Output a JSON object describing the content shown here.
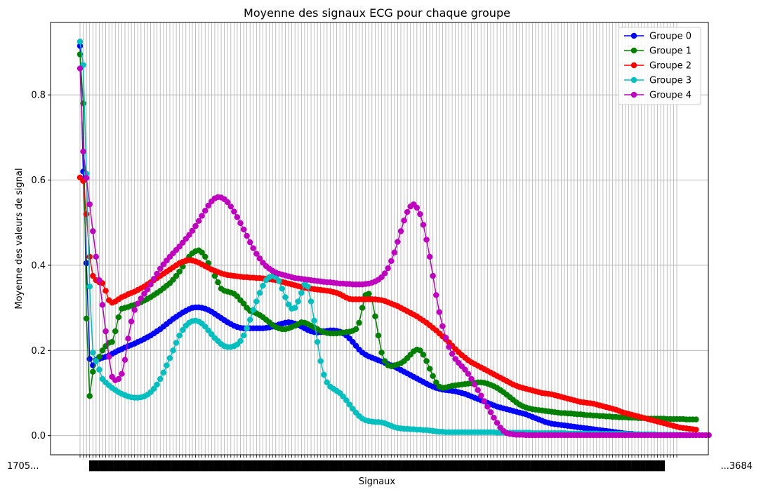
{
  "chart_data": {
    "type": "line",
    "title": "Moyenne des signaux ECG pour chaque groupe",
    "xlabel": "Signaux",
    "ylabel": "Moyenne des valeurs de signal",
    "ylim": [
      -0.045,
      0.97
    ],
    "yticks": [
      "0.0",
      "0.2",
      "0.4",
      "0.6",
      "0.8"
    ],
    "grid": true,
    "legend": "top-right",
    "n_points": 187,
    "x_first_tick": "1705...",
    "x_last_tick": "...3684",
    "series": [
      {
        "name": "Groupe 0",
        "color": "#0000ff",
        "values": [
          0.915,
          0.62,
          0.405,
          0.18,
          0.165,
          0.178,
          0.18,
          0.183,
          0.185,
          0.188,
          0.192,
          0.196,
          0.2,
          0.203,
          0.207,
          0.21,
          0.213,
          0.216,
          0.22,
          0.223,
          0.227,
          0.231,
          0.235,
          0.24,
          0.245,
          0.25,
          0.256,
          0.262,
          0.268,
          0.274,
          0.279,
          0.284,
          0.289,
          0.293,
          0.297,
          0.3,
          0.301,
          0.301,
          0.3,
          0.298,
          0.295,
          0.291,
          0.286,
          0.281,
          0.276,
          0.271,
          0.266,
          0.262,
          0.258,
          0.255,
          0.253,
          0.252,
          0.252,
          0.252,
          0.252,
          0.252,
          0.252,
          0.252,
          0.253,
          0.254,
          0.256,
          0.258,
          0.261,
          0.263,
          0.265,
          0.266,
          0.265,
          0.263,
          0.26,
          0.256,
          0.252,
          0.248,
          0.245,
          0.243,
          0.242,
          0.243,
          0.245,
          0.246,
          0.247,
          0.247,
          0.246,
          0.244,
          0.24,
          0.235,
          0.228,
          0.22,
          0.211,
          0.202,
          0.195,
          0.19,
          0.186,
          0.183,
          0.18,
          0.177,
          0.174,
          0.171,
          0.168,
          0.165,
          0.162,
          0.158,
          0.154,
          0.15,
          0.146,
          0.142,
          0.138,
          0.134,
          0.13,
          0.126,
          0.122,
          0.118,
          0.115,
          0.112,
          0.11,
          0.108,
          0.107,
          0.106,
          0.105,
          0.104,
          0.102,
          0.1,
          0.098,
          0.095,
          0.092,
          0.089,
          0.086,
          0.083,
          0.08,
          0.077,
          0.074,
          0.071,
          0.068,
          0.066,
          0.064,
          0.062,
          0.06,
          0.058,
          0.056,
          0.054,
          0.052,
          0.05,
          0.047,
          0.044,
          0.041,
          0.038,
          0.035,
          0.032,
          0.03,
          0.028,
          0.027,
          0.026,
          0.025,
          0.024,
          0.023,
          0.022,
          0.021,
          0.02,
          0.019,
          0.018,
          0.017,
          0.016,
          0.015,
          0.014,
          0.013,
          0.012,
          0.011,
          0.01,
          0.009,
          0.008,
          0.007,
          0.006,
          0.005,
          0.004,
          0.004,
          0.003,
          0.003,
          0.002,
          0.002,
          0.002,
          0.002,
          0.001,
          0.001,
          0.001,
          0.001,
          0.001,
          0.001,
          0.001,
          0.001,
          0.001,
          0.001,
          0.001,
          0.001
        ]
      },
      {
        "name": "Groupe 1",
        "color": "#008000",
        "values": [
          0.895,
          0.78,
          0.275,
          0.093,
          0.15,
          0.175,
          0.185,
          0.2,
          0.21,
          0.218,
          0.22,
          0.245,
          0.278,
          0.298,
          0.3,
          0.302,
          0.305,
          0.307,
          0.31,
          0.313,
          0.317,
          0.321,
          0.325,
          0.33,
          0.335,
          0.34,
          0.346,
          0.352,
          0.358,
          0.366,
          0.375,
          0.385,
          0.397,
          0.41,
          0.42,
          0.428,
          0.433,
          0.435,
          0.43,
          0.42,
          0.405,
          0.39,
          0.375,
          0.36,
          0.345,
          0.34,
          0.338,
          0.336,
          0.333,
          0.327,
          0.318,
          0.31,
          0.3,
          0.293,
          0.29,
          0.287,
          0.283,
          0.278,
          0.272,
          0.266,
          0.26,
          0.255,
          0.252,
          0.25,
          0.25,
          0.252,
          0.255,
          0.258,
          0.262,
          0.266,
          0.265,
          0.262,
          0.258,
          0.254,
          0.25,
          0.246,
          0.243,
          0.241,
          0.24,
          0.24,
          0.24,
          0.241,
          0.242,
          0.243,
          0.244,
          0.246,
          0.25,
          0.265,
          0.3,
          0.33,
          0.333,
          0.32,
          0.28,
          0.235,
          0.195,
          0.175,
          0.165,
          0.163,
          0.165,
          0.167,
          0.17,
          0.175,
          0.182,
          0.19,
          0.198,
          0.202,
          0.2,
          0.19,
          0.175,
          0.157,
          0.14,
          0.125,
          0.115,
          0.112,
          0.113,
          0.115,
          0.117,
          0.118,
          0.119,
          0.12,
          0.121,
          0.122,
          0.123,
          0.124,
          0.125,
          0.125,
          0.124,
          0.122,
          0.119,
          0.116,
          0.112,
          0.107,
          0.102,
          0.096,
          0.09,
          0.084,
          0.078,
          0.073,
          0.069,
          0.066,
          0.064,
          0.062,
          0.061,
          0.06,
          0.059,
          0.058,
          0.057,
          0.056,
          0.055,
          0.054,
          0.053,
          0.053,
          0.052,
          0.052,
          0.051,
          0.05,
          0.05,
          0.049,
          0.048,
          0.048,
          0.047,
          0.047,
          0.046,
          0.046,
          0.045,
          0.045,
          0.044,
          0.044,
          0.043,
          0.043,
          0.043,
          0.042,
          0.042,
          0.042,
          0.041,
          0.041,
          0.041,
          0.04,
          0.04,
          0.04,
          0.04,
          0.04,
          0.04,
          0.039,
          0.039,
          0.039,
          0.039,
          0.039,
          0.039,
          0.038,
          0.038,
          0.038,
          0.038
        ]
      },
      {
        "name": "Groupe 2",
        "color": "#ff0000",
        "values": [
          0.606,
          0.598,
          0.52,
          0.42,
          0.375,
          0.365,
          0.36,
          0.358,
          0.34,
          0.318,
          0.312,
          0.315,
          0.32,
          0.325,
          0.328,
          0.332,
          0.335,
          0.338,
          0.342,
          0.346,
          0.35,
          0.355,
          0.36,
          0.365,
          0.37,
          0.375,
          0.38,
          0.385,
          0.39,
          0.395,
          0.4,
          0.405,
          0.408,
          0.411,
          0.412,
          0.411,
          0.409,
          0.406,
          0.402,
          0.398,
          0.394,
          0.39,
          0.387,
          0.384,
          0.381,
          0.379,
          0.377,
          0.376,
          0.375,
          0.374,
          0.373,
          0.372,
          0.372,
          0.371,
          0.371,
          0.37,
          0.37,
          0.369,
          0.368,
          0.367,
          0.366,
          0.365,
          0.363,
          0.361,
          0.359,
          0.357,
          0.355,
          0.353,
          0.351,
          0.349,
          0.347,
          0.346,
          0.345,
          0.344,
          0.343,
          0.342,
          0.341,
          0.34,
          0.339,
          0.337,
          0.335,
          0.332,
          0.328,
          0.324,
          0.321,
          0.32,
          0.32,
          0.32,
          0.32,
          0.32,
          0.32,
          0.32,
          0.32,
          0.319,
          0.318,
          0.316,
          0.313,
          0.31,
          0.307,
          0.304,
          0.3,
          0.296,
          0.292,
          0.288,
          0.284,
          0.28,
          0.275,
          0.27,
          0.265,
          0.259,
          0.253,
          0.247,
          0.24,
          0.233,
          0.226,
          0.219,
          0.211,
          0.203,
          0.196,
          0.189,
          0.183,
          0.177,
          0.172,
          0.168,
          0.164,
          0.16,
          0.156,
          0.152,
          0.148,
          0.144,
          0.14,
          0.136,
          0.132,
          0.128,
          0.124,
          0.12,
          0.117,
          0.114,
          0.112,
          0.11,
          0.108,
          0.106,
          0.104,
          0.102,
          0.1,
          0.099,
          0.098,
          0.097,
          0.095,
          0.093,
          0.091,
          0.089,
          0.087,
          0.085,
          0.083,
          0.081,
          0.079,
          0.078,
          0.077,
          0.076,
          0.075,
          0.073,
          0.071,
          0.069,
          0.067,
          0.065,
          0.063,
          0.061,
          0.058,
          0.055,
          0.053,
          0.051,
          0.049,
          0.047,
          0.045,
          0.043,
          0.041,
          0.039,
          0.037,
          0.035,
          0.033,
          0.031,
          0.029,
          0.027,
          0.025,
          0.023,
          0.021,
          0.019,
          0.018,
          0.017,
          0.016,
          0.015,
          0.014
        ]
      },
      {
        "name": "Groupe 3",
        "color": "#00bfbf",
        "values": [
          0.925,
          0.87,
          0.615,
          0.35,
          0.195,
          0.175,
          0.155,
          0.133,
          0.125,
          0.118,
          0.112,
          0.107,
          0.102,
          0.098,
          0.095,
          0.092,
          0.09,
          0.089,
          0.089,
          0.09,
          0.092,
          0.096,
          0.102,
          0.11,
          0.12,
          0.133,
          0.148,
          0.165,
          0.182,
          0.2,
          0.218,
          0.235,
          0.248,
          0.258,
          0.265,
          0.269,
          0.27,
          0.268,
          0.263,
          0.256,
          0.247,
          0.238,
          0.229,
          0.222,
          0.215,
          0.21,
          0.208,
          0.208,
          0.21,
          0.214,
          0.222,
          0.235,
          0.252,
          0.272,
          0.295,
          0.315,
          0.335,
          0.352,
          0.365,
          0.372,
          0.375,
          0.372,
          0.363,
          0.345,
          0.325,
          0.308,
          0.298,
          0.3,
          0.315,
          0.335,
          0.355,
          0.35,
          0.315,
          0.27,
          0.22,
          0.175,
          0.143,
          0.125,
          0.115,
          0.11,
          0.105,
          0.1,
          0.092,
          0.083,
          0.073,
          0.063,
          0.054,
          0.046,
          0.04,
          0.036,
          0.034,
          0.033,
          0.032,
          0.032,
          0.031,
          0.029,
          0.026,
          0.023,
          0.02,
          0.018,
          0.017,
          0.016,
          0.016,
          0.015,
          0.015,
          0.014,
          0.014,
          0.013,
          0.013,
          0.012,
          0.011,
          0.01,
          0.009,
          0.009,
          0.008,
          0.008,
          0.008,
          0.008,
          0.008,
          0.008,
          0.008,
          0.008,
          0.008,
          0.008,
          0.008,
          0.008,
          0.008,
          0.008,
          0.008,
          0.008,
          0.007,
          0.007,
          0.007,
          0.007,
          0.007,
          0.007,
          0.007,
          0.007,
          0.007,
          0.007,
          0.007,
          0.006,
          0.006,
          0.006,
          0.006,
          0.006,
          0.006,
          0.006,
          0.006,
          0.006,
          0.006,
          0.006,
          0.005,
          0.005,
          0.005,
          0.005,
          0.005,
          0.005,
          0.005,
          0.005,
          0.005,
          0.005,
          0.004,
          0.004,
          0.004,
          0.004,
          0.004,
          0.004,
          0.004,
          0.004,
          0.004,
          0.003,
          0.003,
          0.003,
          0.003,
          0.003,
          0.003,
          0.003,
          0.003,
          0.003,
          0.002,
          0.002,
          0.002,
          0.002,
          0.002,
          0.002,
          0.002,
          0.002,
          0.002
        ]
      },
      {
        "name": "Groupe 4",
        "color": "#bf00bf",
        "values": [
          0.862,
          0.667,
          0.605,
          0.543,
          0.48,
          0.42,
          0.365,
          0.307,
          0.245,
          0.185,
          0.138,
          0.13,
          0.133,
          0.145,
          0.178,
          0.228,
          0.268,
          0.295,
          0.31,
          0.322,
          0.333,
          0.343,
          0.355,
          0.368,
          0.38,
          0.392,
          0.402,
          0.411,
          0.42,
          0.428,
          0.436,
          0.444,
          0.453,
          0.462,
          0.471,
          0.481,
          0.492,
          0.504,
          0.516,
          0.528,
          0.54,
          0.55,
          0.557,
          0.56,
          0.559,
          0.555,
          0.548,
          0.538,
          0.526,
          0.513,
          0.499,
          0.484,
          0.469,
          0.454,
          0.44,
          0.427,
          0.416,
          0.406,
          0.398,
          0.392,
          0.387,
          0.383,
          0.38,
          0.378,
          0.376,
          0.374,
          0.372,
          0.37,
          0.369,
          0.368,
          0.367,
          0.366,
          0.365,
          0.364,
          0.363,
          0.362,
          0.361,
          0.36,
          0.36,
          0.359,
          0.358,
          0.357,
          0.357,
          0.356,
          0.356,
          0.355,
          0.355,
          0.355,
          0.355,
          0.356,
          0.357,
          0.359,
          0.362,
          0.366,
          0.372,
          0.381,
          0.393,
          0.41,
          0.43,
          0.455,
          0.48,
          0.505,
          0.525,
          0.538,
          0.543,
          0.535,
          0.52,
          0.495,
          0.46,
          0.42,
          0.375,
          0.33,
          0.29,
          0.257,
          0.23,
          0.208,
          0.192,
          0.18,
          0.171,
          0.163,
          0.155,
          0.145,
          0.133,
          0.12,
          0.107,
          0.094,
          0.081,
          0.068,
          0.055,
          0.042,
          0.03,
          0.019,
          0.011,
          0.006,
          0.004,
          0.003,
          0.002,
          0.002,
          0.002,
          0.001,
          0.001,
          0.001,
          0.001,
          0.001,
          0.001,
          0.001,
          0.001,
          0.001,
          0.001,
          0.001,
          0.001,
          0.001,
          0.001,
          0.001,
          0.001,
          0.001,
          0.001,
          0.001,
          0.001,
          0.001,
          0.001,
          0.001,
          0.001,
          0.001,
          0.001,
          0.001,
          0.001,
          0.001,
          0.001,
          0.001,
          0.001,
          0.001,
          0.001,
          0.001,
          0.001,
          0.001,
          0.001,
          0.001,
          0.001,
          0.001,
          0.001,
          0.001,
          0.001,
          0.001,
          0.001,
          0.001,
          0.001,
          0.001,
          0.001,
          0.001,
          0.001,
          0.001,
          0.001,
          0.001,
          0.001,
          0.001,
          0.001
        ]
      }
    ]
  }
}
